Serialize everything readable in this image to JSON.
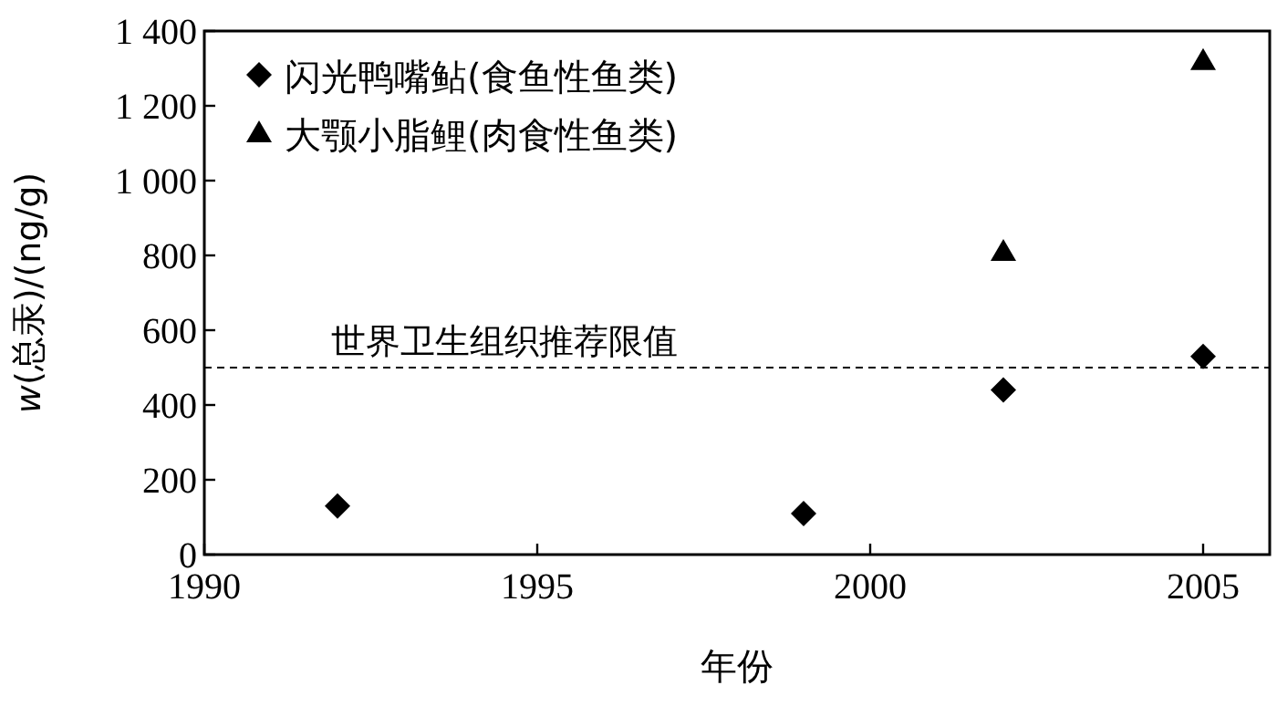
{
  "chart_data": {
    "type": "scatter",
    "xlabel": "年份",
    "ylabel": "*w*(总汞)/(ng/g)",
    "xlim": [
      1990,
      2006
    ],
    "xticks": [
      1990,
      1995,
      2000,
      2005
    ],
    "ylim": [
      0,
      1400
    ],
    "yticks": [
      0,
      200,
      400,
      600,
      800,
      {
        "value": 1000,
        "label": "1 000"
      },
      {
        "value": 1200,
        "label": "1 200"
      },
      {
        "value": 1400,
        "label": "1 400"
      }
    ],
    "legend": "top left",
    "grid": false,
    "series": [
      {
        "name": "闪光鸭嘴鲇(食鱼性鱼类)",
        "color": "#000000",
        "marker": "diamond",
        "x": [
          1992,
          1999,
          2002,
          2005
        ],
        "values": [
          130,
          110,
          440,
          530
        ]
      },
      {
        "name": "大颚小脂鲤(肉食性鱼类)",
        "color": "#000000",
        "marker": "triangle",
        "x": [
          2002,
          2005
        ],
        "values": [
          810,
          1320
        ]
      }
    ],
    "ref_lines": [
      {
        "axis": "y",
        "value": 500,
        "label": "世界卫生组织推荐限值",
        "line_style": "dashed"
      }
    ]
  }
}
